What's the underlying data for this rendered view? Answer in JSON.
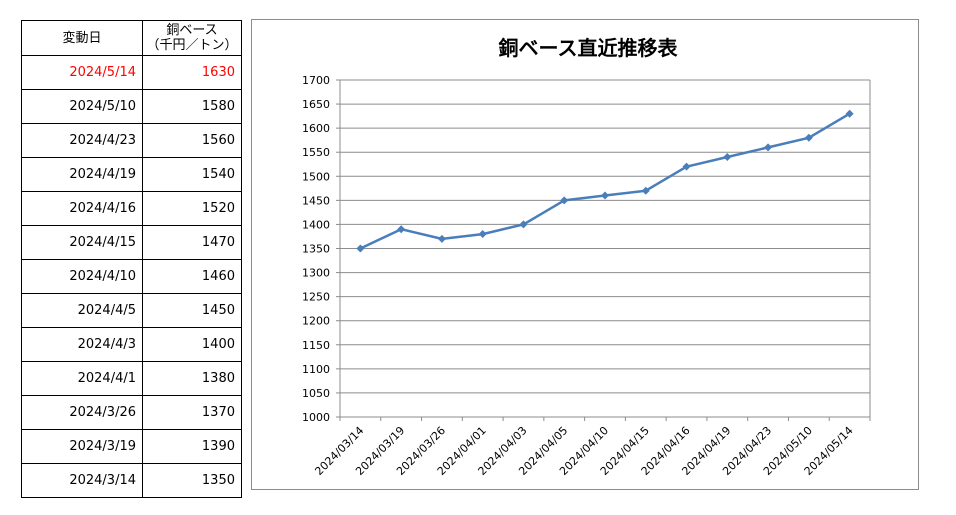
{
  "table": {
    "header_date": "変動日",
    "header_price_line1": "銅ベース",
    "header_price_line2": "（千円／トン）",
    "rows": [
      {
        "date": "2024/5/14",
        "price": "1630"
      },
      {
        "date": "2024/5/10",
        "price": "1580"
      },
      {
        "date": "2024/4/23",
        "price": "1560"
      },
      {
        "date": "2024/4/19",
        "price": "1540"
      },
      {
        "date": "2024/4/16",
        "price": "1520"
      },
      {
        "date": "2024/4/15",
        "price": "1470"
      },
      {
        "date": "2024/4/10",
        "price": "1460"
      },
      {
        "date": "2024/4/5",
        "price": "1450"
      },
      {
        "date": "2024/4/3",
        "price": "1400"
      },
      {
        "date": "2024/4/1",
        "price": "1380"
      },
      {
        "date": "2024/3/26",
        "price": "1370"
      },
      {
        "date": "2024/3/19",
        "price": "1390"
      },
      {
        "date": "2024/3/14",
        "price": "1350"
      }
    ],
    "highlight_color": "#ff0000"
  },
  "chart_data": {
    "type": "line",
    "title": "銅ベース直近推移表",
    "categories": [
      "2024/03/14",
      "2024/03/19",
      "2024/03/26",
      "2024/04/01",
      "2024/04/03",
      "2024/04/05",
      "2024/04/10",
      "2024/04/15",
      "2024/04/16",
      "2024/04/19",
      "2024/04/23",
      "2024/05/10",
      "2024/05/14"
    ],
    "values": [
      1350,
      1390,
      1370,
      1380,
      1400,
      1450,
      1460,
      1470,
      1520,
      1540,
      1560,
      1580,
      1630
    ],
    "ylim": [
      1000,
      1700
    ],
    "ytick_step": 50,
    "yticks": [
      "1000",
      "1050",
      "1100",
      "1150",
      "1200",
      "1250",
      "1300",
      "1350",
      "1400",
      "1450",
      "1500",
      "1550",
      "1600",
      "1650",
      "1700"
    ],
    "grid": true,
    "line_color": "#4a7ebb",
    "marker": "diamond"
  }
}
